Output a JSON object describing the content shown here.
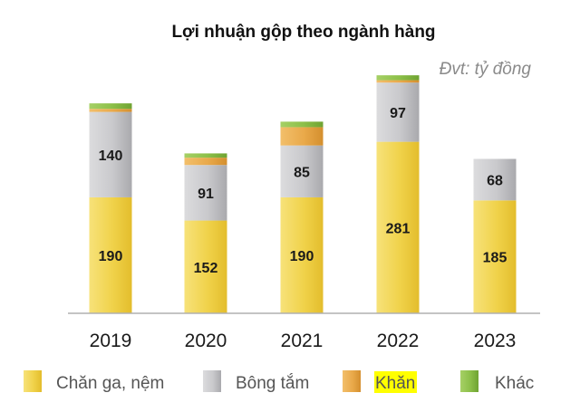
{
  "chart_data": {
    "type": "bar",
    "stacked": true,
    "title": "Lợi nhuận gộp theo ngành hàng",
    "unit_note": "Đvt: tỷ đồng",
    "categories": [
      "2019",
      "2020",
      "2021",
      "2022",
      "2023"
    ],
    "series": [
      {
        "name": "Chăn ga, nệm",
        "values": [
          190,
          152,
          190,
          281,
          185
        ],
        "color": "#f0d24a",
        "labels_shown": true
      },
      {
        "name": "Bông tắm",
        "values": [
          140,
          91,
          85,
          97,
          68
        ],
        "color": "#c9c9cc",
        "labels_shown": true
      },
      {
        "name": "Khăn",
        "values": [
          5,
          12,
          30,
          4,
          0
        ],
        "color": "#e9a94a",
        "labels_shown": false
      },
      {
        "name": "Khác",
        "values": [
          9,
          7,
          9,
          8,
          0
        ],
        "color": "#8cbf48",
        "labels_shown": false
      }
    ],
    "ylim": [
      0,
      400
    ],
    "grid": false,
    "legend_position": "bottom",
    "legend_highlight": {
      "series": "Khăn",
      "color": "#ffff00"
    }
  }
}
